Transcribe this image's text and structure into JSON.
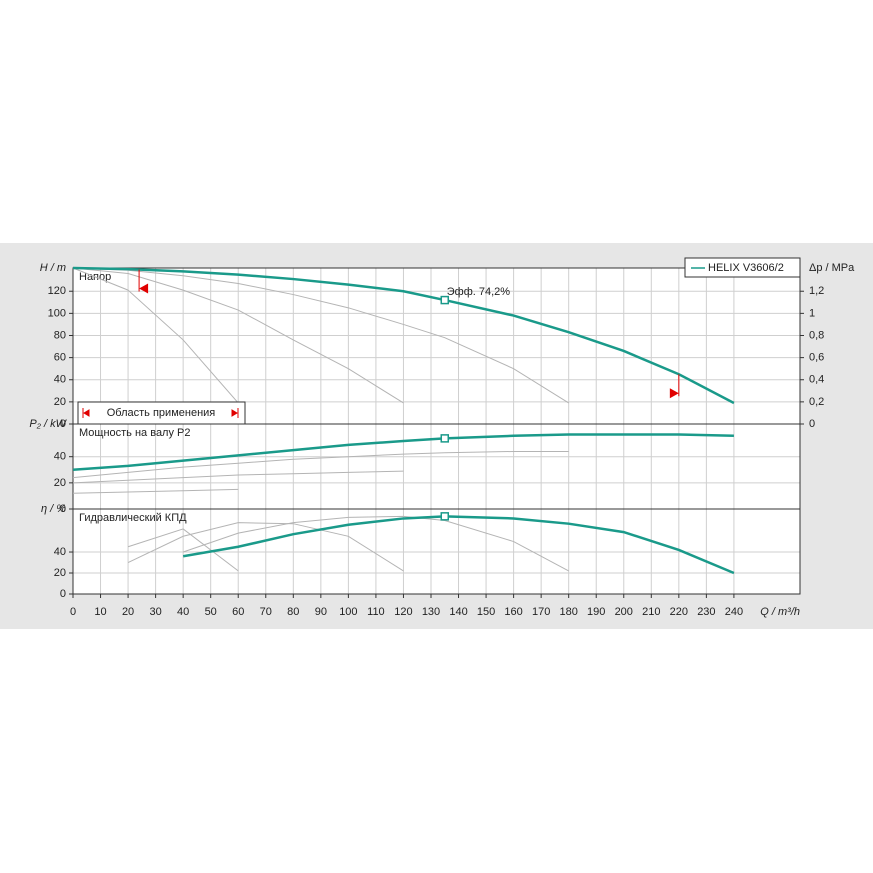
{
  "chart_data": [
    {
      "type": "line",
      "title": "Напор",
      "ylabel": "H / m",
      "y2label": "Δp / MPa",
      "x": [
        0,
        20,
        40,
        60,
        80,
        100,
        120,
        135,
        160,
        180,
        200,
        220,
        240
      ],
      "xlim": [
        0,
        264
      ],
      "ylim": [
        0,
        141
      ],
      "yticks": [
        0,
        20,
        40,
        60,
        80,
        100,
        120
      ],
      "y2lim": [
        0,
        1.41
      ],
      "y2ticks": [
        0,
        {
          "value": 0.2,
          "label": "0,2"
        },
        {
          "value": 0.4,
          "label": "0,4"
        },
        {
          "value": 0.6,
          "label": "0,6"
        },
        {
          "value": 0.8,
          "label": "0,8"
        },
        1,
        {
          "value": 1.2,
          "label": "1,2"
        }
      ],
      "grid": true,
      "legend": "upper right",
      "series": [
        {
          "name": "HELIX V3606/2",
          "color": "#1a9a8a",
          "values": [
            141,
            140,
            138,
            135,
            131,
            126,
            120,
            112,
            98,
            83,
            66,
            45,
            19
          ]
        },
        {
          "color": "#b4b4b4",
          "values": [
            141,
            121,
            76,
            19,
            null,
            null,
            null,
            null,
            null,
            null,
            null,
            null,
            null
          ]
        },
        {
          "color": "#b4b4b4",
          "values": [
            141,
            136,
            121,
            103,
            76,
            50,
            19,
            null,
            null,
            null,
            null,
            null,
            null
          ]
        },
        {
          "color": "#b4b4b4",
          "values": [
            141,
            139,
            134,
            127,
            117,
            105,
            90,
            78,
            50,
            19,
            null,
            null,
            null
          ]
        }
      ],
      "operating_point": {
        "x": 135,
        "y": 112,
        "label": "Эфф.  74,2%"
      },
      "application_range": {
        "label": "Область применения",
        "x": [
          24,
          220
        ]
      }
    },
    {
      "type": "line",
      "title": "Мощность на валу P2",
      "ylabel": "P₂ / kW",
      "x": [
        0,
        20,
        40,
        60,
        80,
        100,
        120,
        135,
        160,
        180,
        200,
        220,
        240
      ],
      "xlim": [
        0,
        264
      ],
      "ylim": [
        0,
        65
      ],
      "yticks": [
        0,
        20,
        40
      ],
      "grid": true,
      "series": [
        {
          "color": "#1a9a8a",
          "values": [
            30,
            33,
            37,
            41,
            45,
            49,
            52,
            54,
            56,
            57,
            57,
            57,
            56
          ]
        },
        {
          "color": "#b4b4b4",
          "values": [
            12,
            13,
            14,
            15,
            null,
            null,
            null,
            null,
            null,
            null,
            null,
            null,
            null
          ]
        },
        {
          "color": "#b4b4b4",
          "values": [
            20,
            22,
            24,
            26,
            27,
            28,
            29,
            null,
            null,
            null,
            null,
            null,
            null
          ]
        },
        {
          "color": "#b4b4b4",
          "values": [
            24,
            28,
            32,
            35,
            38,
            40,
            42,
            43,
            44,
            44,
            null,
            null,
            null
          ]
        }
      ],
      "operating_point": {
        "x": 135,
        "y": 54
      }
    },
    {
      "type": "line",
      "title": "Гидравлический КПД",
      "ylabel": "η / %",
      "xlabel": "Q / m³/h",
      "x": [
        0,
        20,
        40,
        60,
        80,
        100,
        120,
        135,
        160,
        180,
        200,
        220,
        240
      ],
      "xlim": [
        0,
        264
      ],
      "xticks": [
        0,
        10,
        20,
        30,
        40,
        50,
        60,
        70,
        80,
        90,
        100,
        110,
        120,
        130,
        140,
        150,
        160,
        170,
        180,
        190,
        200,
        210,
        220,
        230,
        240
      ],
      "ylim": [
        0,
        81
      ],
      "yticks": [
        0,
        20,
        40
      ],
      "grid": true,
      "series": [
        {
          "color": "#1a9a8a",
          "values": [
            null,
            null,
            36,
            45,
            57,
            66,
            72,
            74,
            72,
            67,
            59,
            42,
            20
          ]
        },
        {
          "color": "#b4b4b4",
          "values": [
            null,
            45,
            62,
            22,
            null,
            null,
            null,
            null,
            null,
            null,
            null,
            null,
            null
          ]
        },
        {
          "color": "#b4b4b4",
          "values": [
            null,
            30,
            55,
            68,
            67,
            55,
            22,
            null,
            null,
            null,
            null,
            null,
            null
          ]
        },
        {
          "color": "#b4b4b4",
          "values": [
            null,
            null,
            40,
            58,
            68,
            73,
            74,
            70,
            50,
            22,
            null,
            null,
            null
          ]
        }
      ],
      "operating_point": {
        "x": 135,
        "y": 74
      }
    }
  ]
}
